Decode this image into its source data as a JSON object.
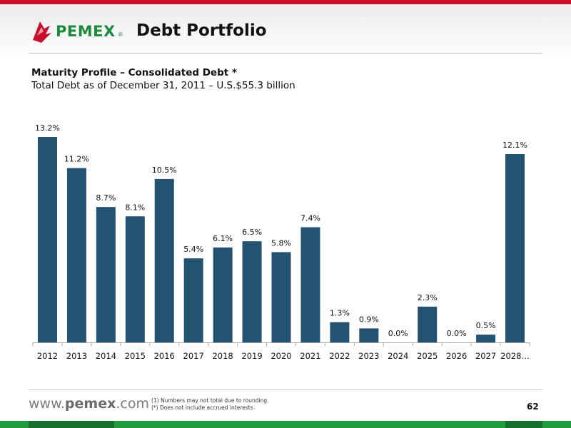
{
  "header": {
    "brand": "PEMEX",
    "brand_mark": "®",
    "title": "Debt Portfolio"
  },
  "subtitle": {
    "line1": "Maturity Profile – Consolidated Debt *",
    "line2": "Total Debt as of December 31, 2011 – U.S.$55.3 billion"
  },
  "chart_data": {
    "type": "bar",
    "categories": [
      "2012",
      "2013",
      "2014",
      "2015",
      "2016",
      "2017",
      "2018",
      "2019",
      "2020",
      "2021",
      "2022",
      "2023",
      "2024",
      "2025",
      "2026",
      "2027",
      "2028…"
    ],
    "values": [
      13.2,
      11.2,
      8.7,
      8.1,
      10.5,
      5.4,
      6.1,
      6.5,
      5.8,
      7.4,
      1.3,
      0.9,
      0.0,
      2.3,
      0.0,
      0.5,
      12.1
    ],
    "labels": [
      "13.2%",
      "11.2%",
      "8.7%",
      "8.1%",
      "10.5%",
      "5.4%",
      "6.1%",
      "6.5%",
      "5.8%",
      "7.4%",
      "1.3%",
      "0.9%",
      "0.0%",
      "2.3%",
      "0.0%",
      "0.5%",
      "12.1%"
    ],
    "ylim": [
      0,
      13.2
    ],
    "bar_color": "#245271",
    "grid": false,
    "legend": "none"
  },
  "footer": {
    "url_prefix": "www.",
    "url_brand": "pemex",
    "url_suffix": ".com",
    "note1": "(1)    Numbers may not total due to rounding.",
    "note2": "(*)   Does not include accrued interests",
    "page": "62"
  },
  "colors": {
    "top_bar": "#c8102e",
    "bottom_bar": "#1f9a3d",
    "brand_green": "#1e8a3e"
  }
}
